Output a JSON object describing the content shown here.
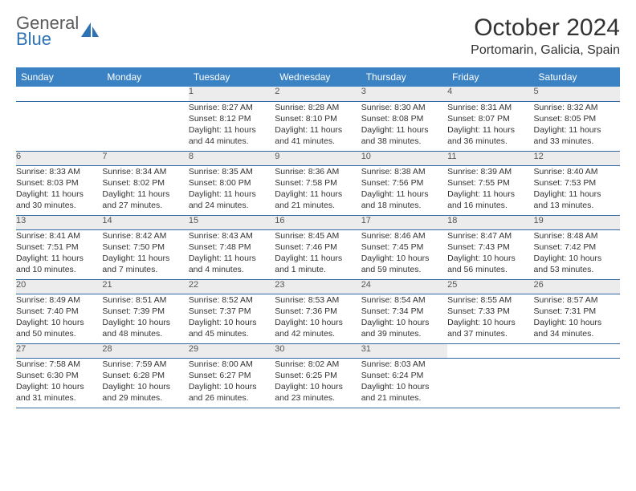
{
  "brand": {
    "line1": "General",
    "line2": "Blue"
  },
  "title": "October 2024",
  "location": "Portomarin, Galicia, Spain",
  "colors": {
    "header_bg": "#3b82c4",
    "header_text": "#ffffff",
    "daynum_bg": "#ececec",
    "row_border": "#2d6aa3",
    "body_text": "#333333"
  },
  "weekday_labels": [
    "Sunday",
    "Monday",
    "Tuesday",
    "Wednesday",
    "Thursday",
    "Friday",
    "Saturday"
  ],
  "weeks": [
    [
      null,
      null,
      {
        "n": "1",
        "lines": [
          "Sunrise: 8:27 AM",
          "Sunset: 8:12 PM",
          "Daylight: 11 hours",
          "and 44 minutes."
        ]
      },
      {
        "n": "2",
        "lines": [
          "Sunrise: 8:28 AM",
          "Sunset: 8:10 PM",
          "Daylight: 11 hours",
          "and 41 minutes."
        ]
      },
      {
        "n": "3",
        "lines": [
          "Sunrise: 8:30 AM",
          "Sunset: 8:08 PM",
          "Daylight: 11 hours",
          "and 38 minutes."
        ]
      },
      {
        "n": "4",
        "lines": [
          "Sunrise: 8:31 AM",
          "Sunset: 8:07 PM",
          "Daylight: 11 hours",
          "and 36 minutes."
        ]
      },
      {
        "n": "5",
        "lines": [
          "Sunrise: 8:32 AM",
          "Sunset: 8:05 PM",
          "Daylight: 11 hours",
          "and 33 minutes."
        ]
      }
    ],
    [
      {
        "n": "6",
        "lines": [
          "Sunrise: 8:33 AM",
          "Sunset: 8:03 PM",
          "Daylight: 11 hours",
          "and 30 minutes."
        ]
      },
      {
        "n": "7",
        "lines": [
          "Sunrise: 8:34 AM",
          "Sunset: 8:02 PM",
          "Daylight: 11 hours",
          "and 27 minutes."
        ]
      },
      {
        "n": "8",
        "lines": [
          "Sunrise: 8:35 AM",
          "Sunset: 8:00 PM",
          "Daylight: 11 hours",
          "and 24 minutes."
        ]
      },
      {
        "n": "9",
        "lines": [
          "Sunrise: 8:36 AM",
          "Sunset: 7:58 PM",
          "Daylight: 11 hours",
          "and 21 minutes."
        ]
      },
      {
        "n": "10",
        "lines": [
          "Sunrise: 8:38 AM",
          "Sunset: 7:56 PM",
          "Daylight: 11 hours",
          "and 18 minutes."
        ]
      },
      {
        "n": "11",
        "lines": [
          "Sunrise: 8:39 AM",
          "Sunset: 7:55 PM",
          "Daylight: 11 hours",
          "and 16 minutes."
        ]
      },
      {
        "n": "12",
        "lines": [
          "Sunrise: 8:40 AM",
          "Sunset: 7:53 PM",
          "Daylight: 11 hours",
          "and 13 minutes."
        ]
      }
    ],
    [
      {
        "n": "13",
        "lines": [
          "Sunrise: 8:41 AM",
          "Sunset: 7:51 PM",
          "Daylight: 11 hours",
          "and 10 minutes."
        ]
      },
      {
        "n": "14",
        "lines": [
          "Sunrise: 8:42 AM",
          "Sunset: 7:50 PM",
          "Daylight: 11 hours",
          "and 7 minutes."
        ]
      },
      {
        "n": "15",
        "lines": [
          "Sunrise: 8:43 AM",
          "Sunset: 7:48 PM",
          "Daylight: 11 hours",
          "and 4 minutes."
        ]
      },
      {
        "n": "16",
        "lines": [
          "Sunrise: 8:45 AM",
          "Sunset: 7:46 PM",
          "Daylight: 11 hours",
          "and 1 minute."
        ]
      },
      {
        "n": "17",
        "lines": [
          "Sunrise: 8:46 AM",
          "Sunset: 7:45 PM",
          "Daylight: 10 hours",
          "and 59 minutes."
        ]
      },
      {
        "n": "18",
        "lines": [
          "Sunrise: 8:47 AM",
          "Sunset: 7:43 PM",
          "Daylight: 10 hours",
          "and 56 minutes."
        ]
      },
      {
        "n": "19",
        "lines": [
          "Sunrise: 8:48 AM",
          "Sunset: 7:42 PM",
          "Daylight: 10 hours",
          "and 53 minutes."
        ]
      }
    ],
    [
      {
        "n": "20",
        "lines": [
          "Sunrise: 8:49 AM",
          "Sunset: 7:40 PM",
          "Daylight: 10 hours",
          "and 50 minutes."
        ]
      },
      {
        "n": "21",
        "lines": [
          "Sunrise: 8:51 AM",
          "Sunset: 7:39 PM",
          "Daylight: 10 hours",
          "and 48 minutes."
        ]
      },
      {
        "n": "22",
        "lines": [
          "Sunrise: 8:52 AM",
          "Sunset: 7:37 PM",
          "Daylight: 10 hours",
          "and 45 minutes."
        ]
      },
      {
        "n": "23",
        "lines": [
          "Sunrise: 8:53 AM",
          "Sunset: 7:36 PM",
          "Daylight: 10 hours",
          "and 42 minutes."
        ]
      },
      {
        "n": "24",
        "lines": [
          "Sunrise: 8:54 AM",
          "Sunset: 7:34 PM",
          "Daylight: 10 hours",
          "and 39 minutes."
        ]
      },
      {
        "n": "25",
        "lines": [
          "Sunrise: 8:55 AM",
          "Sunset: 7:33 PM",
          "Daylight: 10 hours",
          "and 37 minutes."
        ]
      },
      {
        "n": "26",
        "lines": [
          "Sunrise: 8:57 AM",
          "Sunset: 7:31 PM",
          "Daylight: 10 hours",
          "and 34 minutes."
        ]
      }
    ],
    [
      {
        "n": "27",
        "lines": [
          "Sunrise: 7:58 AM",
          "Sunset: 6:30 PM",
          "Daylight: 10 hours",
          "and 31 minutes."
        ]
      },
      {
        "n": "28",
        "lines": [
          "Sunrise: 7:59 AM",
          "Sunset: 6:28 PM",
          "Daylight: 10 hours",
          "and 29 minutes."
        ]
      },
      {
        "n": "29",
        "lines": [
          "Sunrise: 8:00 AM",
          "Sunset: 6:27 PM",
          "Daylight: 10 hours",
          "and 26 minutes."
        ]
      },
      {
        "n": "30",
        "lines": [
          "Sunrise: 8:02 AM",
          "Sunset: 6:25 PM",
          "Daylight: 10 hours",
          "and 23 minutes."
        ]
      },
      {
        "n": "31",
        "lines": [
          "Sunrise: 8:03 AM",
          "Sunset: 6:24 PM",
          "Daylight: 10 hours",
          "and 21 minutes."
        ]
      },
      null,
      null
    ]
  ]
}
